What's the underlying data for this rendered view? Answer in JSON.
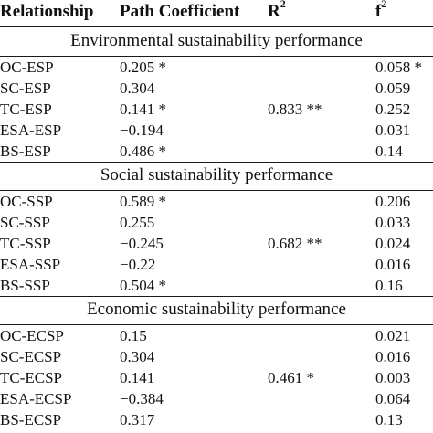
{
  "headers": {
    "relationship": "Relationship",
    "path_coefficient": "Path Coefficient",
    "r2_base": "R",
    "r2_sup": "2",
    "f2_base": "f",
    "f2_sup": "2"
  },
  "sections": [
    {
      "title": "Environmental sustainability performance",
      "r2": "0.833 **",
      "rows": [
        {
          "relationship": "OC-ESP",
          "path_coefficient": "0.205 *",
          "f2": "0.058 *"
        },
        {
          "relationship": "SC-ESP",
          "path_coefficient": "0.304",
          "f2": "0.059"
        },
        {
          "relationship": "TC-ESP",
          "path_coefficient": "0.141 *",
          "f2": "0.252"
        },
        {
          "relationship": "ESA-ESP",
          "path_coefficient": "−0.194",
          "f2": "0.031"
        },
        {
          "relationship": "BS-ESP",
          "path_coefficient": "0.486 *",
          "f2": "0.14"
        }
      ]
    },
    {
      "title": "Social sustainability performance",
      "r2": "0.682 **",
      "rows": [
        {
          "relationship": "OC-SSP",
          "path_coefficient": "0.589 *",
          "f2": "0.206"
        },
        {
          "relationship": "SC-SSP",
          "path_coefficient": "0.255",
          "f2": "0.033"
        },
        {
          "relationship": "TC-SSP",
          "path_coefficient": "−0.245",
          "f2": "0.024"
        },
        {
          "relationship": "ESA-SSP",
          "path_coefficient": "−0.22",
          "f2": "0.016"
        },
        {
          "relationship": "BS-SSP",
          "path_coefficient": "0.504 *",
          "f2": "0.16"
        }
      ]
    },
    {
      "title": "Economic sustainability performance",
      "r2": "0.461 *",
      "rows": [
        {
          "relationship": "OC-ECSP",
          "path_coefficient": "0.15",
          "f2": "0.021"
        },
        {
          "relationship": "SC-ECSP",
          "path_coefficient": "0.304",
          "f2": "0.016"
        },
        {
          "relationship": "TC-ECSP",
          "path_coefficient": "0.141",
          "f2": "0.003"
        },
        {
          "relationship": "ESA-ECSP",
          "path_coefficient": "−0.384",
          "f2": "0.064"
        },
        {
          "relationship": "BS-ECSP",
          "path_coefficient": "0.317",
          "f2": "0.13"
        }
      ]
    }
  ]
}
